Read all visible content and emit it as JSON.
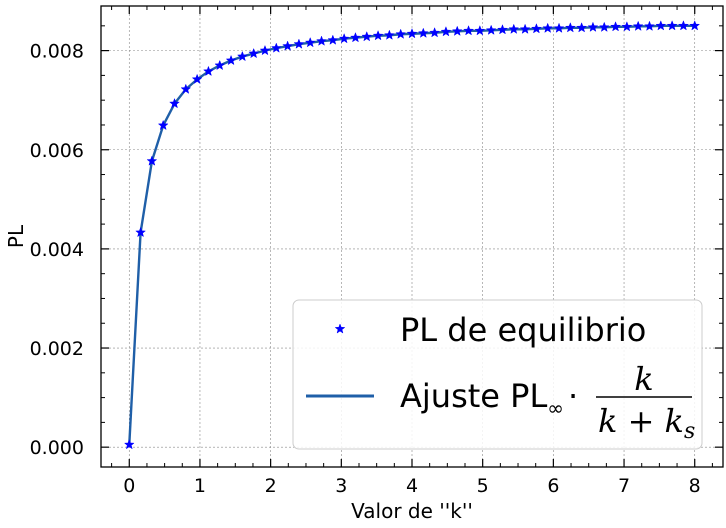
{
  "chart_data": {
    "type": "scatter",
    "xlabel": "Valor de ''k''",
    "ylabel": "PL",
    "xlim": [
      -0.4,
      8.4
    ],
    "ylim": [
      -0.0004,
      0.0089
    ],
    "x_ticks": [
      0,
      1,
      2,
      3,
      4,
      5,
      6,
      7,
      8
    ],
    "x_tick_labels": [
      "0",
      "1",
      "2",
      "3",
      "4",
      "5",
      "6",
      "7",
      "8"
    ],
    "y_ticks": [
      0.0,
      0.002,
      0.004,
      0.006,
      0.008
    ],
    "y_tick_labels": [
      "0.000",
      "0.002",
      "0.004",
      "0.006",
      "0.008"
    ],
    "grid": true,
    "legend_position": "bottom-right",
    "series": [
      {
        "name": "PL de equilibrio",
        "kind": "markers",
        "marker": "star",
        "color": "#0000ff",
        "x": [
          0.0,
          0.16,
          0.32,
          0.48,
          0.64,
          0.8,
          0.96,
          1.12,
          1.28,
          1.44,
          1.6,
          1.76,
          1.92,
          2.08,
          2.24,
          2.4,
          2.56,
          2.72,
          2.88,
          3.04,
          3.2,
          3.36,
          3.52,
          3.68,
          3.84,
          4.0,
          4.16,
          4.32,
          4.48,
          4.64,
          4.8,
          4.96,
          5.12,
          5.28,
          5.44,
          5.6,
          5.76,
          5.92,
          6.08,
          6.24,
          6.4,
          6.56,
          6.72,
          6.88,
          7.04,
          7.2,
          7.36,
          7.52,
          7.68,
          7.84,
          8.0
        ],
        "y": [
          5e-05,
          0.00433,
          0.00577,
          0.00649,
          0.00693,
          0.00722,
          0.00742,
          0.00758,
          0.0077,
          0.0078,
          0.00788,
          0.00794,
          0.008,
          0.00805,
          0.00809,
          0.00813,
          0.00816,
          0.00819,
          0.00821,
          0.00824,
          0.00826,
          0.00828,
          0.0083,
          0.00831,
          0.00833,
          0.00834,
          0.00835,
          0.00836,
          0.00838,
          0.00839,
          0.0084,
          0.0084,
          0.00841,
          0.00842,
          0.00843,
          0.00843,
          0.00844,
          0.00845,
          0.00845,
          0.00846,
          0.00846,
          0.00847,
          0.00847,
          0.00848,
          0.00848,
          0.00849,
          0.00849,
          0.0085,
          0.0085,
          0.0085,
          0.0085
        ]
      },
      {
        "name": "Ajuste PL∞ · k/(k+ks)",
        "kind": "line",
        "color": "#1f5fa8",
        "x": [
          0.0,
          0.16,
          0.32,
          0.48,
          0.64,
          0.8,
          0.96,
          1.12,
          1.28,
          1.44,
          1.6,
          1.76,
          1.92,
          2.08,
          2.24,
          2.4,
          2.56,
          2.72,
          2.88,
          3.04,
          3.2,
          3.36,
          3.52,
          3.68,
          3.84,
          4.0,
          4.16,
          4.32,
          4.48,
          4.64,
          4.8,
          4.96,
          5.12,
          5.28,
          5.44,
          5.6,
          5.76,
          5.92,
          6.08,
          6.24,
          6.4,
          6.56,
          6.72,
          6.88,
          7.04,
          7.2,
          7.36,
          7.52,
          7.68,
          7.84,
          8.0
        ],
        "y": [
          5e-05,
          0.00433,
          0.00577,
          0.00649,
          0.00693,
          0.00722,
          0.00742,
          0.00758,
          0.0077,
          0.0078,
          0.00788,
          0.00794,
          0.008,
          0.00805,
          0.00809,
          0.00813,
          0.00816,
          0.00819,
          0.00821,
          0.00824,
          0.00826,
          0.00828,
          0.0083,
          0.00831,
          0.00833,
          0.00834,
          0.00835,
          0.00836,
          0.00838,
          0.00839,
          0.0084,
          0.0084,
          0.00841,
          0.00842,
          0.00843,
          0.00843,
          0.00844,
          0.00845,
          0.00845,
          0.00846,
          0.00846,
          0.00847,
          0.00847,
          0.00848,
          0.00848,
          0.00849,
          0.00849,
          0.0085,
          0.0085,
          0.0085,
          0.0085
        ]
      }
    ],
    "legend": {
      "entry_markers": "PL de equilibrio",
      "entry_line_prefix": "Ajuste PL",
      "entry_line_infinity": "∞",
      "entry_line_dot": "·",
      "entry_line_numerator": "k",
      "entry_line_denominator": "k + k",
      "entry_line_subscript": "s"
    }
  }
}
